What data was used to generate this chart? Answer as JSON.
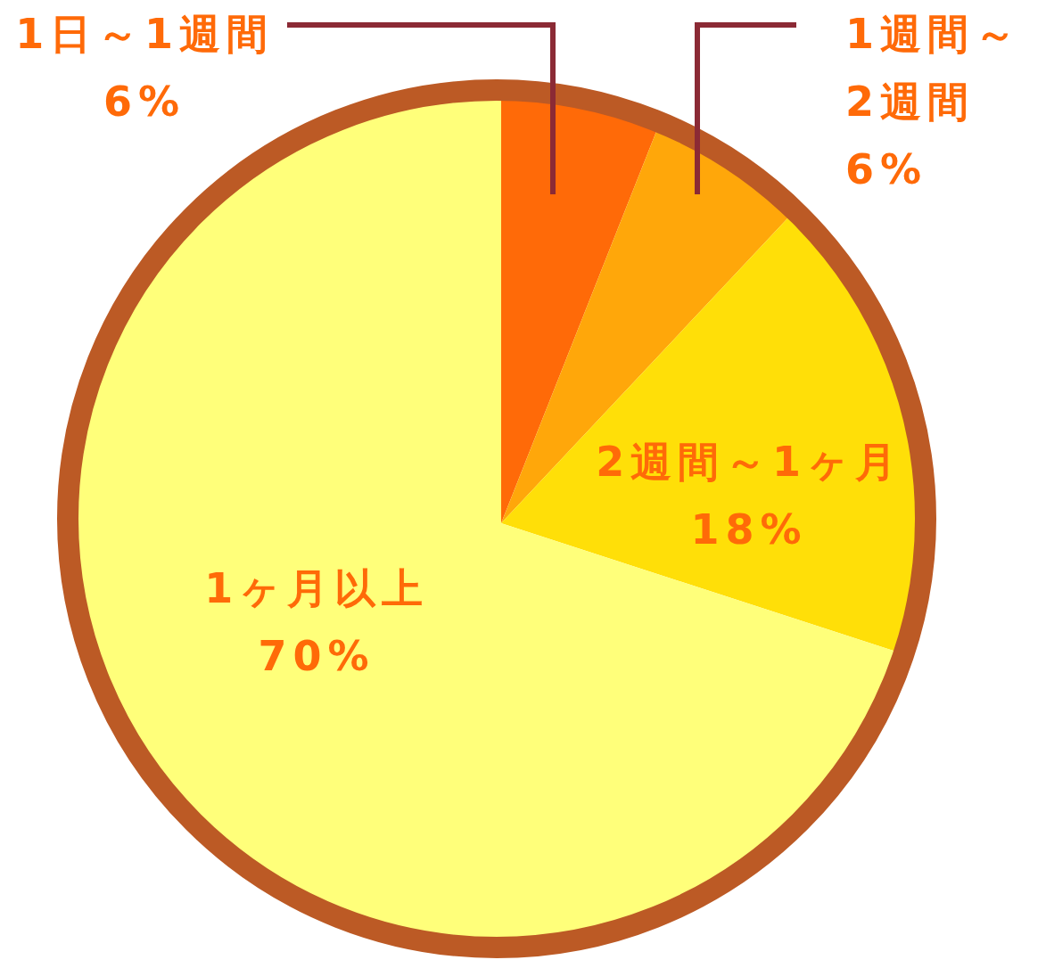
{
  "chart_data": {
    "type": "pie",
    "categories": [
      "1日～1週間",
      "1週間～2週間",
      "2週間～1ヶ月",
      "1ヶ月以上"
    ],
    "values": [
      6,
      6,
      18,
      70
    ],
    "value_labels": [
      "6%",
      "6%",
      "18%",
      "70%"
    ],
    "colors": [
      "#ff6a08",
      "#ffa70a",
      "#ffdf08",
      "#ffff7a"
    ],
    "legend": false
  }
}
